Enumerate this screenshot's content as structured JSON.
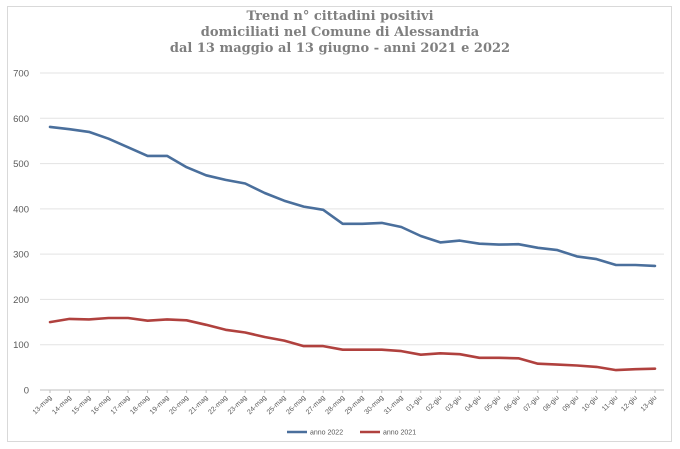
{
  "chart_data": {
    "type": "line",
    "title": [
      "Trend n° cittadini positivi",
      "domiciliati nel Comune di Alessandria",
      "dal 13 maggio al 13 giugno - anni 2021 e 2022"
    ],
    "xlabel": "",
    "ylabel": "",
    "ylim": [
      0,
      700
    ],
    "yticks": [
      "0",
      "100",
      "200",
      "300",
      "400",
      "500",
      "600",
      "700"
    ],
    "grid": true,
    "legend_position": "bottom",
    "categories": [
      "13-mag",
      "14-mag",
      "15-mag",
      "16-mag",
      "17-mag",
      "18-mag",
      "19-mag",
      "20-mag",
      "21-mag",
      "22-mag",
      "23-mag",
      "24-mag",
      "25-mag",
      "26-mag",
      "27-mag",
      "28-mag",
      "29-mag",
      "30-mag",
      "31-mag",
      "01-giu",
      "02-giu",
      "03-giu",
      "04-giu",
      "05-giu",
      "06-giu",
      "07-giu",
      "08-giu",
      "09-giu",
      "10-giu",
      "11-giu",
      "12-giu",
      "13-giu"
    ],
    "series": [
      {
        "name": "anno 2022",
        "color": "#4a6f9c",
        "values": [
          581,
          576,
          570,
          555,
          536,
          517,
          517,
          492,
          474,
          464,
          456,
          435,
          418,
          405,
          398,
          367,
          367,
          369,
          360,
          340,
          326,
          330,
          323,
          321,
          322,
          314,
          309,
          295,
          289,
          276,
          276,
          274
        ]
      },
      {
        "name": "anno 2021",
        "color": "#b0413e",
        "values": [
          150,
          157,
          156,
          159,
          159,
          153,
          156,
          154,
          144,
          133,
          127,
          117,
          109,
          97,
          97,
          89,
          89,
          89,
          86,
          78,
          81,
          79,
          71,
          71,
          70,
          58,
          56,
          54,
          51,
          44,
          46,
          47
        ]
      }
    ]
  }
}
